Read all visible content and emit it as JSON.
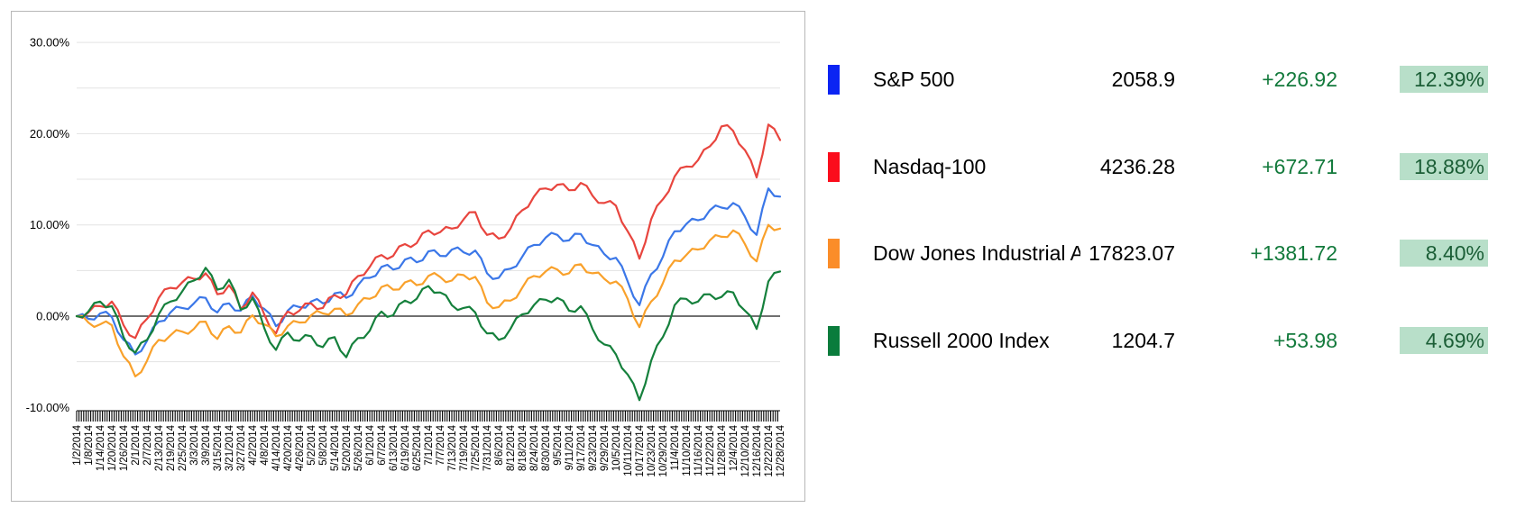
{
  "colors": {
    "grid": "#e3e3e3",
    "zero_line": "#1a1a1a",
    "axis_text": "#000000",
    "chart_border": "#b7b7b7",
    "change_text": "#137a3c",
    "badge_bg": "#b8dfc9",
    "badge_text": "#1b5e36"
  },
  "legend": {
    "rows": [
      {
        "name": "S&P 500",
        "swatch_color": "#0b24f3",
        "value": "2058.9",
        "change": "+226.92",
        "pct": "12.39%"
      },
      {
        "name": "Nasdaq-100",
        "swatch_color": "#fb0d1c",
        "value": "4236.28",
        "change": "+672.71",
        "pct": "18.88%"
      },
      {
        "name": "Dow Jones Industrial Average",
        "swatch_color": "#fb8d29",
        "value": "17823.07",
        "change": "+1381.72",
        "pct": "8.40%"
      },
      {
        "name": "Russell 2000 Index",
        "swatch_color": "#0a7c3c",
        "value": "1204.7",
        "change": "+53.98",
        "pct": "4.69%"
      }
    ]
  },
  "chart_data": {
    "type": "line",
    "title": "",
    "xlabel": "",
    "ylabel": "",
    "ylim": [
      -10,
      30
    ],
    "grid_step_pct": 5,
    "grid": true,
    "ytick_values": [
      30,
      20,
      10,
      0,
      -10
    ],
    "ytick_labels": [
      "30.00%",
      "20.00%",
      "10.00%",
      "0.00%",
      "-10.00%"
    ],
    "x_labels": [
      "1/2/2014",
      "1/8/2014",
      "1/14/2014",
      "1/20/2014",
      "1/26/2014",
      "2/1/2014",
      "2/7/2014",
      "2/13/2014",
      "2/19/2014",
      "2/25/2014",
      "3/3/2014",
      "3/9/2014",
      "3/15/2014",
      "3/21/2014",
      "3/27/2014",
      "4/2/2014",
      "4/8/2014",
      "4/14/2014",
      "4/20/2014",
      "4/26/2014",
      "5/2/2014",
      "5/8/2014",
      "5/14/2014",
      "5/20/2014",
      "5/26/2014",
      "6/1/2014",
      "6/7/2014",
      "6/13/2014",
      "6/19/2014",
      "6/25/2014",
      "7/1/2014",
      "7/7/2014",
      "7/13/2014",
      "7/19/2014",
      "7/25/2014",
      "7/31/2014",
      "8/6/2014",
      "8/12/2014",
      "8/18/2014",
      "8/24/2014",
      "8/30/2014",
      "9/5/2014",
      "9/11/2014",
      "9/17/2014",
      "9/23/2014",
      "9/29/2014",
      "10/5/2014",
      "10/11/2014",
      "10/17/2014",
      "10/23/2014",
      "10/29/2014",
      "11/4/2014",
      "11/10/2014",
      "11/16/2014",
      "11/22/2014",
      "11/28/2014",
      "12/4/2014",
      "12/10/2014",
      "12/16/2014",
      "12/22/2014",
      "12/28/2014"
    ],
    "unit": "percent_change_ytd",
    "series": [
      {
        "name": "S&P 500",
        "color": "#3b77e8",
        "values": [
          0,
          -0.3,
          0.3,
          -0.1,
          -2.6,
          -4.2,
          -2.7,
          -0.6,
          0.4,
          0.9,
          1.4,
          2.0,
          0.4,
          1.4,
          0.6,
          2.2,
          0.8,
          -1.1,
          0.6,
          1.0,
          1.6,
          1.4,
          2.5,
          2.0,
          3.4,
          4.2,
          5.4,
          5.1,
          6.2,
          5.9,
          7.1,
          6.6,
          7.3,
          7.0,
          7.2,
          4.7,
          4.2,
          5.2,
          6.5,
          7.8,
          8.6,
          8.9,
          8.3,
          9.0,
          7.8,
          6.8,
          6.4,
          3.8,
          1.2,
          4.6,
          6.5,
          9.3,
          10.1,
          10.5,
          11.6,
          11.9,
          12.4,
          10.9,
          8.9,
          14.0,
          13.1
        ]
      },
      {
        "name": "Nasdaq-100",
        "color": "#e8453e",
        "values": [
          0,
          0.4,
          1.1,
          1.6,
          -1.0,
          -2.4,
          -0.3,
          2.0,
          3.1,
          3.7,
          4.1,
          4.7,
          2.4,
          3.4,
          0.8,
          2.6,
          0.2,
          -1.9,
          0.5,
          0.6,
          1.4,
          0.9,
          2.3,
          2.4,
          4.4,
          5.4,
          6.7,
          6.6,
          7.9,
          8.0,
          9.4,
          9.2,
          9.6,
          10.6,
          11.4,
          8.9,
          8.5,
          9.6,
          11.6,
          13.1,
          14.0,
          14.4,
          13.8,
          14.6,
          13.2,
          12.4,
          12.1,
          9.3,
          6.3,
          10.6,
          12.8,
          15.3,
          16.4,
          17.1,
          18.6,
          20.8,
          20.3,
          18.2,
          15.2,
          21.0,
          19.3
        ]
      },
      {
        "name": "Dow Jones Industrial Average",
        "color": "#f9a12b",
        "values": [
          0,
          -0.7,
          -0.9,
          -1.0,
          -4.4,
          -6.6,
          -4.9,
          -2.6,
          -2.1,
          -1.7,
          -1.4,
          -0.6,
          -2.5,
          -1.1,
          -1.8,
          0.1,
          -0.9,
          -2.2,
          -1.1,
          -0.7,
          0.1,
          0.3,
          0.8,
          0.1,
          1.3,
          1.9,
          3.2,
          2.9,
          3.7,
          3.4,
          4.4,
          4.3,
          3.9,
          4.5,
          4.3,
          1.5,
          1.0,
          1.7,
          3.1,
          4.4,
          4.9,
          5.1,
          4.7,
          5.7,
          4.7,
          4.1,
          3.8,
          1.9,
          -1.2,
          1.6,
          3.6,
          6.1,
          6.7,
          7.3,
          8.3,
          8.7,
          9.4,
          7.9,
          6.0,
          10.0,
          9.6
        ]
      },
      {
        "name": "Russell 2000 Index",
        "color": "#15803c",
        "values": [
          0,
          0.5,
          1.6,
          1.1,
          -2.3,
          -4.0,
          -2.6,
          0.2,
          1.6,
          2.7,
          3.9,
          5.3,
          2.9,
          4.0,
          0.7,
          2.0,
          -1.3,
          -3.7,
          -1.8,
          -2.7,
          -2.2,
          -3.4,
          -2.3,
          -4.5,
          -2.4,
          -1.6,
          0.5,
          0.1,
          1.7,
          1.9,
          3.3,
          2.6,
          1.2,
          0.9,
          0.4,
          -1.9,
          -2.6,
          -1.4,
          0.2,
          1.2,
          1.8,
          2.0,
          0.6,
          1.1,
          -1.4,
          -3.1,
          -4.2,
          -6.4,
          -9.2,
          -4.9,
          -2.3,
          1.2,
          1.9,
          1.6,
          2.4,
          2.1,
          2.6,
          0.6,
          -1.4,
          3.8,
          4.9
        ]
      }
    ]
  }
}
